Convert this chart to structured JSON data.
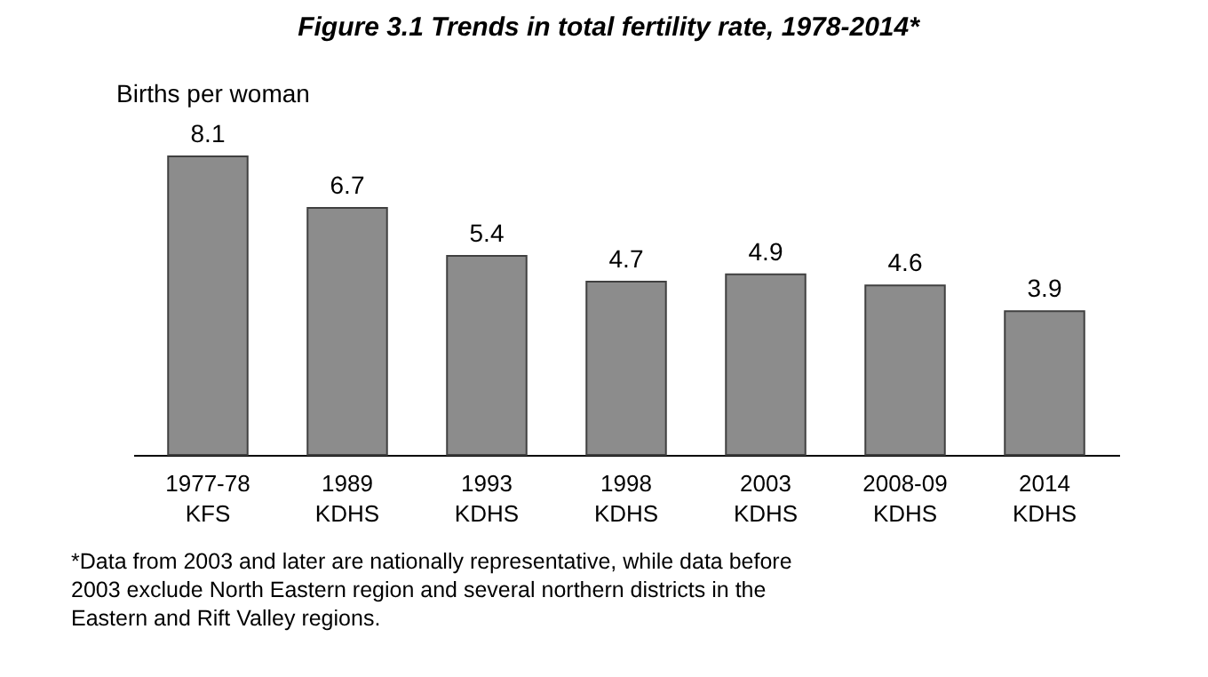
{
  "chart_data": {
    "type": "bar",
    "title": "Figure 3.1  Trends in total fertility rate, 1978-2014*",
    "ylabel": "Births per woman",
    "categories": [
      "1977-78\nKFS",
      "1989\nKDHS",
      "1993\nKDHS",
      "1998\nKDHS",
      "2003\nKDHS",
      "2008-09\nKDHS",
      "2014\nKDHS"
    ],
    "values": [
      8.1,
      6.7,
      5.4,
      4.7,
      4.9,
      4.6,
      3.9
    ],
    "color": "#8c8c8c",
    "data_labels": true,
    "tick_labels": "x",
    "grid": false,
    "annotations": [
      "*Data from 2003 and later are nationally representative, while data before\n2003 exclude North Eastern region and several northern districts in the\nEastern and Rift Valley regions."
    ]
  }
}
